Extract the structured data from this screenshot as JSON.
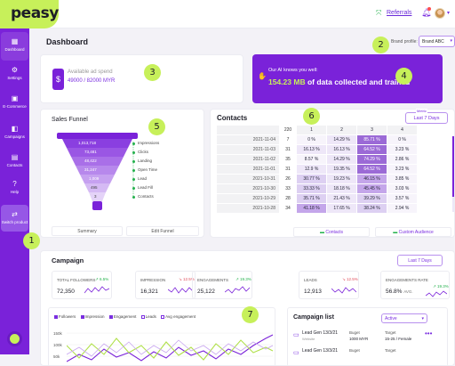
{
  "app": {
    "logo": "peasy"
  },
  "topbar": {
    "referrals": "Referrals"
  },
  "sidebar": {
    "items": [
      {
        "label": "Dashboard",
        "icon": "grid-icon"
      },
      {
        "label": "Settings",
        "icon": "gear-icon"
      },
      {
        "label": "E-Commerce",
        "icon": "store-icon"
      },
      {
        "label": "Campaigns",
        "icon": "megaphone-icon"
      },
      {
        "label": "Contacts",
        "icon": "contacts-icon"
      },
      {
        "label": "Help",
        "icon": "help-icon"
      },
      {
        "label": "Switch product",
        "icon": "switch-icon"
      }
    ]
  },
  "page": {
    "title": "Dashboard",
    "brand_label": "Brand profile:",
    "brand_value": "Brand ABC"
  },
  "ad_spend": {
    "label": "Available ad spend",
    "value": "49000 / 82000 MYR"
  },
  "ai": {
    "label": "Our AI knows you well:",
    "amount": "154.23 MB",
    "rest": "of data collected and trained"
  },
  "funnel": {
    "title": "Sales Funnel",
    "values": [
      "1,013,718",
      "73,481",
      "48,422",
      "31,247",
      "1,009",
      "495",
      "3"
    ],
    "labels": [
      "Impressions",
      "Clicks",
      "Landing",
      "Open Time",
      "Lead",
      "Lead Fill",
      "Contacts"
    ],
    "btn_left": "Summary",
    "btn_right": "Edit Funnel"
  },
  "contacts": {
    "title": "Contacts",
    "filter_label": "Metric",
    "filter_value": "Last 7 Days",
    "header": [
      "",
      "220",
      "1",
      "2",
      "3",
      "4"
    ],
    "rows": [
      {
        "date": "2021-11-04",
        "count": "7",
        "p": [
          "0 %",
          "14.29 %",
          "85.71 %",
          "0 %"
        ]
      },
      {
        "date": "2021-11-03",
        "count": "31",
        "p": [
          "16.13 %",
          "16.13 %",
          "64.52 %",
          "3.23 %"
        ]
      },
      {
        "date": "2021-11-02",
        "count": "35",
        "p": [
          "8.57 %",
          "14.29 %",
          "74.29 %",
          "2.86 %"
        ]
      },
      {
        "date": "2021-11-01",
        "count": "31",
        "p": [
          "12.9 %",
          "19.35 %",
          "64.52 %",
          "3.23 %"
        ]
      },
      {
        "date": "2021-10-31",
        "count": "26",
        "p": [
          "30.77 %",
          "19.23 %",
          "46.15 %",
          "3.85 %"
        ]
      },
      {
        "date": "2021-10-30",
        "count": "33",
        "p": [
          "33.33 %",
          "18.18 %",
          "45.45 %",
          "3.03 %"
        ]
      },
      {
        "date": "2021-10-29",
        "count": "28",
        "p": [
          "35.71 %",
          "21.43 %",
          "39.29 %",
          "3.57 %"
        ]
      },
      {
        "date": "2021-10-28",
        "count": "34",
        "p": [
          "41.18 %",
          "17.65 %",
          "38.24 %",
          "2.94 %"
        ]
      }
    ],
    "btn_contacts": "Contacts",
    "btn_audience": "Custom Audience"
  },
  "campaign": {
    "title": "Campaign",
    "filter": "Last 7 Days",
    "stats": [
      {
        "name": "TOTAL FOLLOWERS",
        "pct": "↗ 6.5%",
        "value": "72,350",
        "up": true
      },
      {
        "name": "IMPRESSION",
        "pct": "↘ 12.5%",
        "value": "16,321",
        "up": false
      },
      {
        "name": "ENGAGEMENTS",
        "pct": "↗ 19.3%",
        "value": "25,122",
        "up": true
      },
      {
        "name": "LEADS",
        "pct": "↘ 12.5%",
        "value": "12,913",
        "up": false
      },
      {
        "name": "ENGAGEMENTS RATE",
        "pct": "↗ 19.3%",
        "value": "56.8%",
        "suffix": "AVG.",
        "up": true
      }
    ],
    "legend": [
      "Followers",
      "Impression",
      "Engagement",
      "Leads",
      "Avg engagement"
    ],
    "yticks": [
      "150k",
      "100k",
      "50k"
    ],
    "list_title": "Campaign list",
    "list_filter": "Active",
    "list": [
      {
        "name": "Lead Gen 13/3/21",
        "sub": "Website",
        "budget_label": "Buget",
        "budget": "1000 MYR",
        "target_label": "Target",
        "target": "15-25 / Female"
      },
      {
        "name": "Lead Gen 13/3/21",
        "sub": "",
        "budget_label": "Buget",
        "budget": "",
        "target_label": "Target",
        "target": ""
      }
    ]
  },
  "markers": [
    "1",
    "2",
    "3",
    "4",
    "5",
    "6",
    "7"
  ],
  "colors": {
    "purple": "#7a22d9",
    "lime": "#c7f05a",
    "up": "#22b04b",
    "down": "#e04b5a"
  }
}
